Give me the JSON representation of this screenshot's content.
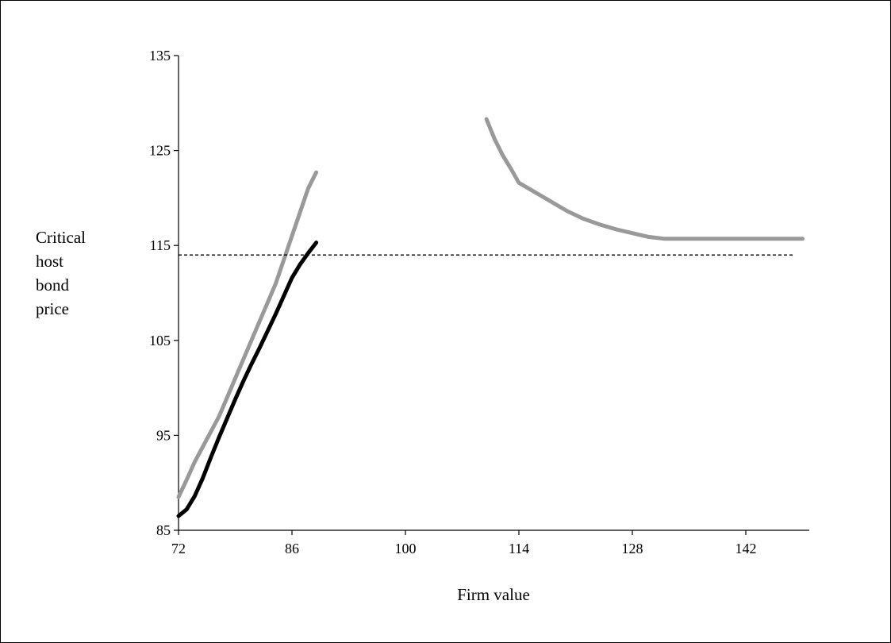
{
  "chart_data": {
    "type": "line",
    "title": "",
    "xlabel": "Firm value",
    "ylabel_lines": [
      "Critical",
      "host",
      "bond",
      "price"
    ],
    "xlim": [
      72,
      150
    ],
    "ylim": [
      85,
      135
    ],
    "x_ticks": [
      72,
      86,
      100,
      114,
      128,
      142
    ],
    "y_ticks": [
      85,
      95,
      105,
      115,
      125,
      135
    ],
    "grid": false,
    "legend": "none",
    "series": [
      {
        "color": "#999999",
        "style": "solid",
        "points": [
          [
            72,
            88.5
          ],
          [
            73,
            90.3
          ],
          [
            74,
            92.2
          ],
          [
            75,
            93.8
          ],
          [
            76,
            95.4
          ],
          [
            77,
            97.0
          ],
          [
            78,
            99.0
          ],
          [
            79,
            101.0
          ],
          [
            80,
            103.0
          ],
          [
            81,
            105.0
          ],
          [
            82,
            107.0
          ],
          [
            83,
            109.0
          ],
          [
            84,
            111.0
          ],
          [
            85,
            113.5
          ],
          [
            86,
            116.0
          ],
          [
            87,
            118.5
          ],
          [
            88,
            121.0
          ],
          [
            89,
            122.7
          ]
        ]
      },
      {
        "color": "#000000",
        "style": "solid",
        "points": [
          [
            72,
            86.5
          ],
          [
            73,
            87.2
          ],
          [
            74,
            88.6
          ],
          [
            75,
            90.5
          ],
          [
            76,
            92.7
          ],
          [
            77,
            94.8
          ],
          [
            78,
            96.8
          ],
          [
            79,
            98.8
          ],
          [
            80,
            100.7
          ],
          [
            81,
            102.5
          ],
          [
            82,
            104.2
          ],
          [
            83,
            106.0
          ],
          [
            84,
            107.8
          ],
          [
            85,
            109.7
          ],
          [
            86,
            111.6
          ],
          [
            87,
            113.0
          ],
          [
            88,
            114.2
          ],
          [
            89,
            115.3
          ]
        ]
      },
      {
        "color": "#999999",
        "style": "solid",
        "points": [
          [
            110,
            128.3
          ],
          [
            111,
            126.2
          ],
          [
            112,
            124.5
          ],
          [
            113,
            123.1
          ],
          [
            114,
            121.6
          ],
          [
            116,
            120.6
          ],
          [
            118,
            119.6
          ],
          [
            120,
            118.6
          ],
          [
            122,
            117.8
          ],
          [
            124,
            117.2
          ],
          [
            126,
            116.7
          ],
          [
            128,
            116.3
          ],
          [
            130,
            115.9
          ],
          [
            132,
            115.7
          ],
          [
            136,
            115.7
          ],
          [
            140,
            115.7
          ],
          [
            144,
            115.7
          ],
          [
            149,
            115.7
          ]
        ]
      },
      {
        "color": "#000000",
        "style": "dashed",
        "points": [
          [
            72,
            114.0
          ],
          [
            148,
            114.0
          ]
        ]
      }
    ]
  }
}
